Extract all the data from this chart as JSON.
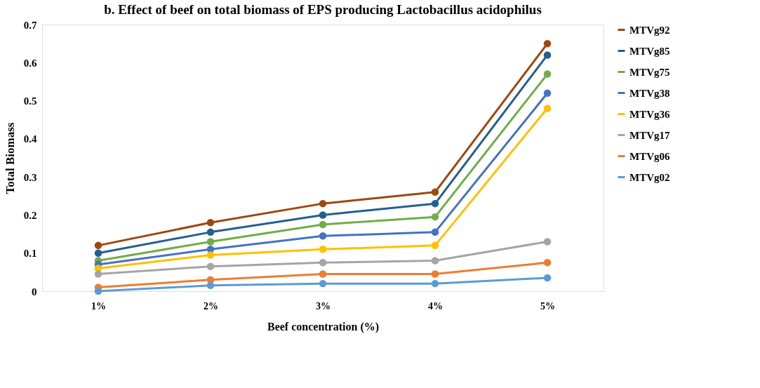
{
  "chart_data": {
    "type": "line",
    "title": "b. Effect of beef on total biomass of EPS producing Lactobacillus acidophilus",
    "xlabel": "Beef concentration (%)",
    "ylabel": "Total Biomass",
    "categories": [
      "1%",
      "2%",
      "3%",
      "4%",
      "5%"
    ],
    "series": [
      {
        "name": "MTVg92",
        "color": "#9e480e",
        "values": [
          0.12,
          0.18,
          0.23,
          0.26,
          0.65
        ]
      },
      {
        "name": "MTVg85",
        "color": "#255e91",
        "values": [
          0.1,
          0.155,
          0.2,
          0.23,
          0.62
        ]
      },
      {
        "name": "MTVg75",
        "color": "#70ad47",
        "values": [
          0.08,
          0.13,
          0.175,
          0.195,
          0.57
        ]
      },
      {
        "name": "MTVg38",
        "color": "#4472c4",
        "values": [
          0.07,
          0.11,
          0.145,
          0.155,
          0.52
        ]
      },
      {
        "name": "MTVg36",
        "color": "#ffc000",
        "values": [
          0.06,
          0.095,
          0.11,
          0.12,
          0.48
        ]
      },
      {
        "name": "MTVg17",
        "color": "#a5a5a5",
        "values": [
          0.045,
          0.065,
          0.075,
          0.08,
          0.13
        ]
      },
      {
        "name": "MTVg06",
        "color": "#ed7d31",
        "values": [
          0.01,
          0.03,
          0.045,
          0.045,
          0.075
        ]
      },
      {
        "name": "MTVg02",
        "color": "#5b9bd5",
        "values": [
          0,
          0.015,
          0.02,
          0.02,
          0.035
        ]
      }
    ],
    "ylim": [
      0,
      0.7
    ],
    "yticks": [
      0,
      0.1,
      0.2,
      0.3,
      0.4,
      0.5,
      0.6,
      0.7
    ],
    "grid": false,
    "legend": "right",
    "marker": "circle",
    "line_style": "solid"
  }
}
